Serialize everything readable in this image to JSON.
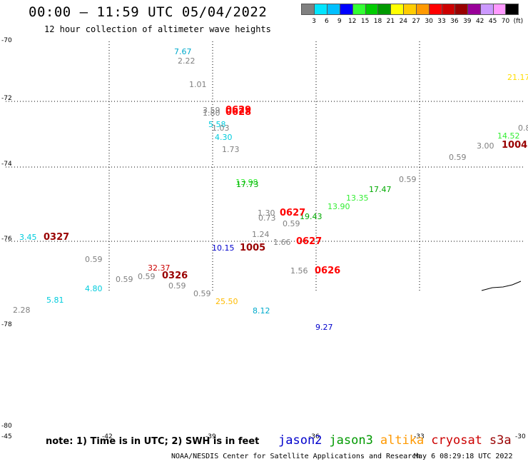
{
  "header": {
    "title": "00:00 – 11:59 UTC 05/04/2022",
    "subtitle": "12 hour collection of altimeter wave heights"
  },
  "colorbar": {
    "unit": "(ft)",
    "ticks": [
      "3",
      "6",
      "9",
      "12",
      "15",
      "18",
      "21",
      "24",
      "27",
      "30",
      "33",
      "36",
      "39",
      "42",
      "45",
      "70"
    ],
    "colors": [
      "#808080",
      "#00e5ff",
      "#00bfff",
      "#0000ff",
      "#33ff33",
      "#00cc00",
      "#009900",
      "#ffff00",
      "#ffcc00",
      "#ff9900",
      "#ff0000",
      "#cc0000",
      "#990000",
      "#990099",
      "#cc99ff",
      "#ff99ff",
      "#000000"
    ]
  },
  "axes": {
    "lat_labels": [
      "-70",
      "-72",
      "-74",
      "-76",
      "-78",
      "-80"
    ],
    "lon_labels": [
      "-45",
      "-42",
      "-39",
      "-36",
      "-33",
      "-30"
    ]
  },
  "observations": [
    {
      "text": "7.67",
      "color": "#00aacc"
    },
    {
      "text": "2.22",
      "color": "#808080"
    },
    {
      "text": "1.01",
      "color": "#808080"
    },
    {
      "text": "21.17",
      "color": "#ffdd00"
    },
    {
      "text": "3.59",
      "color": "#808080"
    },
    {
      "text": "1.80",
      "color": "#808080"
    },
    {
      "text": "5.58",
      "color": "#00ccdd"
    },
    {
      "text": "1.03",
      "color": "#808080"
    },
    {
      "text": "4.30",
      "color": "#00ccdd"
    },
    {
      "text": "1.73",
      "color": "#808080"
    },
    {
      "text": "0.8",
      "color": "#808080"
    },
    {
      "text": "14.52",
      "color": "#33ee33"
    },
    {
      "text": "3.00",
      "color": "#808080"
    },
    {
      "text": "0.59",
      "color": "#808080"
    },
    {
      "text": "13.98",
      "color": "#33ee33"
    },
    {
      "text": "17.73",
      "color": "#00aa00"
    },
    {
      "text": "0.59",
      "color": "#808080"
    },
    {
      "text": "17.47",
      "color": "#00aa00"
    },
    {
      "text": "13.35",
      "color": "#33ee33"
    },
    {
      "text": "13.90",
      "color": "#33ee33"
    },
    {
      "text": "1.30",
      "color": "#808080"
    },
    {
      "text": "0.73",
      "color": "#808080"
    },
    {
      "text": "19.43",
      "color": "#00aa00"
    },
    {
      "text": "0.59",
      "color": "#808080"
    },
    {
      "text": "1.24",
      "color": "#808080"
    },
    {
      "text": "1.66",
      "color": "#808080"
    },
    {
      "text": "10.15",
      "color": "#0000cc"
    },
    {
      "text": "3.45",
      "color": "#00ccdd"
    },
    {
      "text": "0.59",
      "color": "#808080"
    },
    {
      "text": "32.37",
      "color": "#cc0000"
    },
    {
      "text": "0.59",
      "color": "#808080"
    },
    {
      "text": "0.59",
      "color": "#808080"
    },
    {
      "text": "4.80",
      "color": "#00ccdd"
    },
    {
      "text": "0.59",
      "color": "#808080"
    },
    {
      "text": "1.56",
      "color": "#808080"
    },
    {
      "text": "0.59",
      "color": "#808080"
    },
    {
      "text": "25.50",
      "color": "#ffbb00"
    },
    {
      "text": "5.81",
      "color": "#00ccdd"
    },
    {
      "text": "2.28",
      "color": "#808080"
    },
    {
      "text": "8.12",
      "color": "#00aacc"
    },
    {
      "text": "9.27",
      "color": "#0000cc"
    }
  ],
  "time_tags": [
    {
      "text": "0629",
      "color": "#ff0000"
    },
    {
      "text": "0628",
      "color": "#ff0000"
    },
    {
      "text": "1004",
      "color": "#990000"
    },
    {
      "text": "0627",
      "color": "#ff0000"
    },
    {
      "text": "1005",
      "color": "#990000"
    },
    {
      "text": "0627",
      "color": "#ff0000"
    },
    {
      "text": "0327",
      "color": "#990000"
    },
    {
      "text": "0326",
      "color": "#990000"
    },
    {
      "text": "0626",
      "color": "#ff0000"
    }
  ],
  "footer": {
    "note": "note: 1) Time is in UTC; 2) SWH is in feet",
    "legend": [
      {
        "name": "jason2",
        "color": "#0000cc"
      },
      {
        "name": "jason3",
        "color": "#009900"
      },
      {
        "name": "altika",
        "color": "#ff9900"
      },
      {
        "name": "cryosat",
        "color": "#cc0000"
      },
      {
        "name": "s3a",
        "color": "#990000"
      }
    ],
    "credit": "NOAA/NESDIS Center for Satellite Applications and Research",
    "timestamp": "May  6 08:29:18 UTC 2022"
  }
}
